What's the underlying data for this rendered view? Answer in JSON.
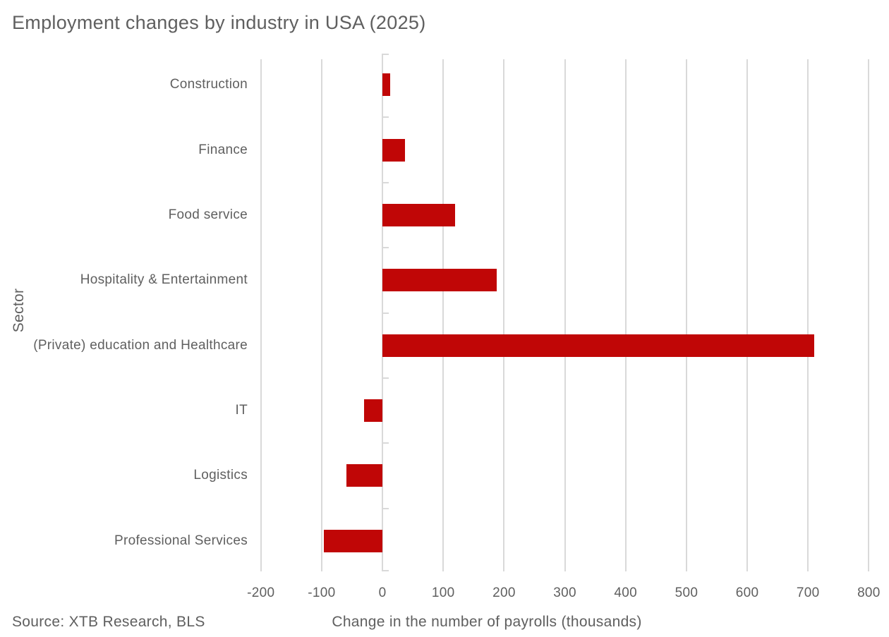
{
  "page": {
    "background": "#ffffff"
  },
  "chart_data": {
    "type": "bar",
    "orientation": "horizontal",
    "title": "Employment changes by industry in USA (2025)",
    "xlabel": "Change in the number of payrolls (thousands)",
    "ylabel": "Sector",
    "source_note": "Source: XTB Research, BLS",
    "categories": [
      "Construction",
      "Finance",
      "Food service",
      "Hospitality & Entertainment",
      "(Private) education and Healthcare",
      "IT",
      "Logistics",
      "Professional Services"
    ],
    "values": [
      13,
      37,
      120,
      188,
      710,
      -30,
      -59,
      -97
    ],
    "xticks": [
      -200,
      -100,
      0,
      100,
      200,
      300,
      400,
      500,
      600,
      700,
      800
    ],
    "xlim": [
      -209,
      810
    ],
    "grid": true,
    "legend": "none",
    "colors": {
      "bar": "#c00606",
      "grid": "#d9d9d9",
      "text": "#5f5f5f"
    }
  }
}
